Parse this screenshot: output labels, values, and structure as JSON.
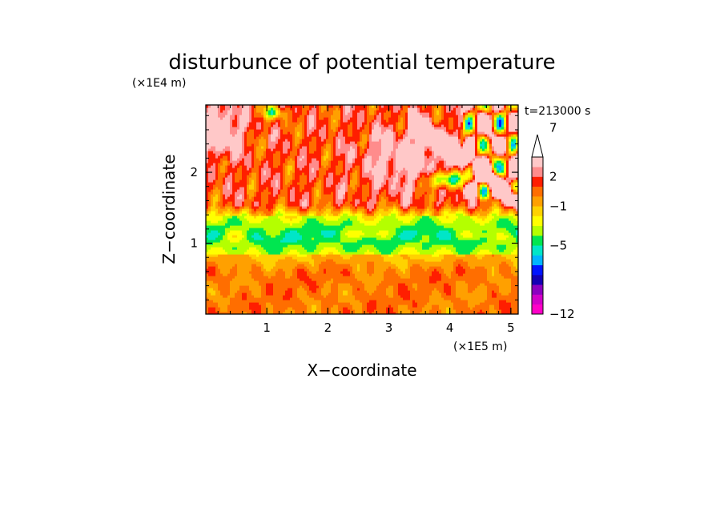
{
  "chart_data": {
    "type": "heatmap",
    "title": "disturbunce of potential temperature",
    "xlabel": "X−coordinate",
    "ylabel": "Z−coordinate",
    "x_unit": "(×1E5 m)",
    "y_unit": "(×1E4 m)",
    "time_label": "t=213000 s",
    "xlim": [
      0,
      5.12
    ],
    "ylim": [
      0,
      2.95
    ],
    "x_ticks": [
      1,
      2,
      3,
      4,
      5
    ],
    "y_ticks": [
      1,
      2
    ],
    "colorbar": {
      "levels": [
        -12,
        -11,
        -10,
        -9,
        -8,
        -7,
        -6,
        -5,
        -4,
        -3,
        -2,
        -1,
        0,
        1,
        2,
        3,
        4,
        5,
        6,
        7,
        8,
        9,
        10
      ],
      "labeled": [
        -12,
        -5,
        -1,
        2,
        7
      ],
      "colors": [
        "#ff00c8",
        "#d200c8",
        "#8c00c0",
        "#1400b4",
        "#0014ff",
        "#00b4ff",
        "#00e6c8",
        "#00e650",
        "#b4ff00",
        "#ffff00",
        "#ffd200",
        "#ffa000",
        "#ff6e00",
        "#ff1e00",
        "#ff8c8c",
        "#ffc8c8"
      ],
      "extend": "max"
    },
    "field_regions": [
      {
        "region": "lower layer",
        "z_range": [
          0,
          0.85
        ],
        "dominant_level": 0
      },
      {
        "region": "cold band",
        "z_range": [
          0.85,
          1.4
        ],
        "dominant_level": -5
      },
      {
        "region": "upper layer",
        "z_range": [
          1.4,
          2.95
        ],
        "dominant_level": 1
      },
      {
        "region": "wave packet",
        "x_range": [
          3.6,
          5.12
        ],
        "z_range": [
          1.5,
          2.9
        ],
        "level_range": [
          -5,
          7
        ]
      }
    ]
  }
}
